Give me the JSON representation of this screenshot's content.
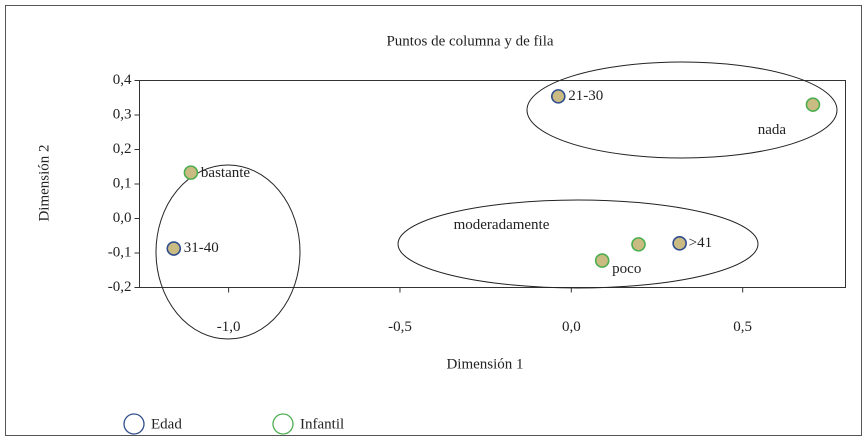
{
  "chart_data": {
    "type": "scatter",
    "title": "Puntos de columna y de fila",
    "x_label": "Dimensión 1",
    "y_label": "Dimensión 2",
    "xlim": [
      -1.26,
      0.8
    ],
    "ylim": [
      -0.2,
      0.4
    ],
    "xticks": [
      {
        "value": -1.0,
        "label": "-1,0"
      },
      {
        "value": -0.5,
        "label": "-0,5"
      },
      {
        "value": 0.0,
        "label": "0,0"
      },
      {
        "value": 0.5,
        "label": "0,5"
      }
    ],
    "yticks": [
      {
        "value": -0.2,
        "label": "-0,2"
      },
      {
        "value": -0.1,
        "label": "-0,1"
      },
      {
        "value": 0.0,
        "label": "0,0"
      },
      {
        "value": 0.1,
        "label": "0,1"
      },
      {
        "value": 0.2,
        "label": "0,2"
      },
      {
        "value": 0.3,
        "label": "0,3"
      },
      {
        "value": 0.4,
        "label": "0,4"
      }
    ],
    "marker_fill": "#c9bb82",
    "series": [
      {
        "name": "Edad",
        "color": "#2f4d8f",
        "labels": [
          "21-30",
          "31-40",
          ">41"
        ],
        "x": [
          -0.038,
          -1.16,
          0.316
        ],
        "values": [
          0.354,
          -0.087,
          -0.072
        ]
      },
      {
        "name": "Infantil",
        "color": "#4cae4f",
        "labels": [
          "nada",
          "bastante",
          "moderadamente",
          "poco"
        ],
        "x": [
          0.705,
          -1.11,
          0.196,
          0.09
        ],
        "values": [
          0.33,
          0.133,
          -0.075,
          -0.122
        ]
      }
    ]
  }
}
